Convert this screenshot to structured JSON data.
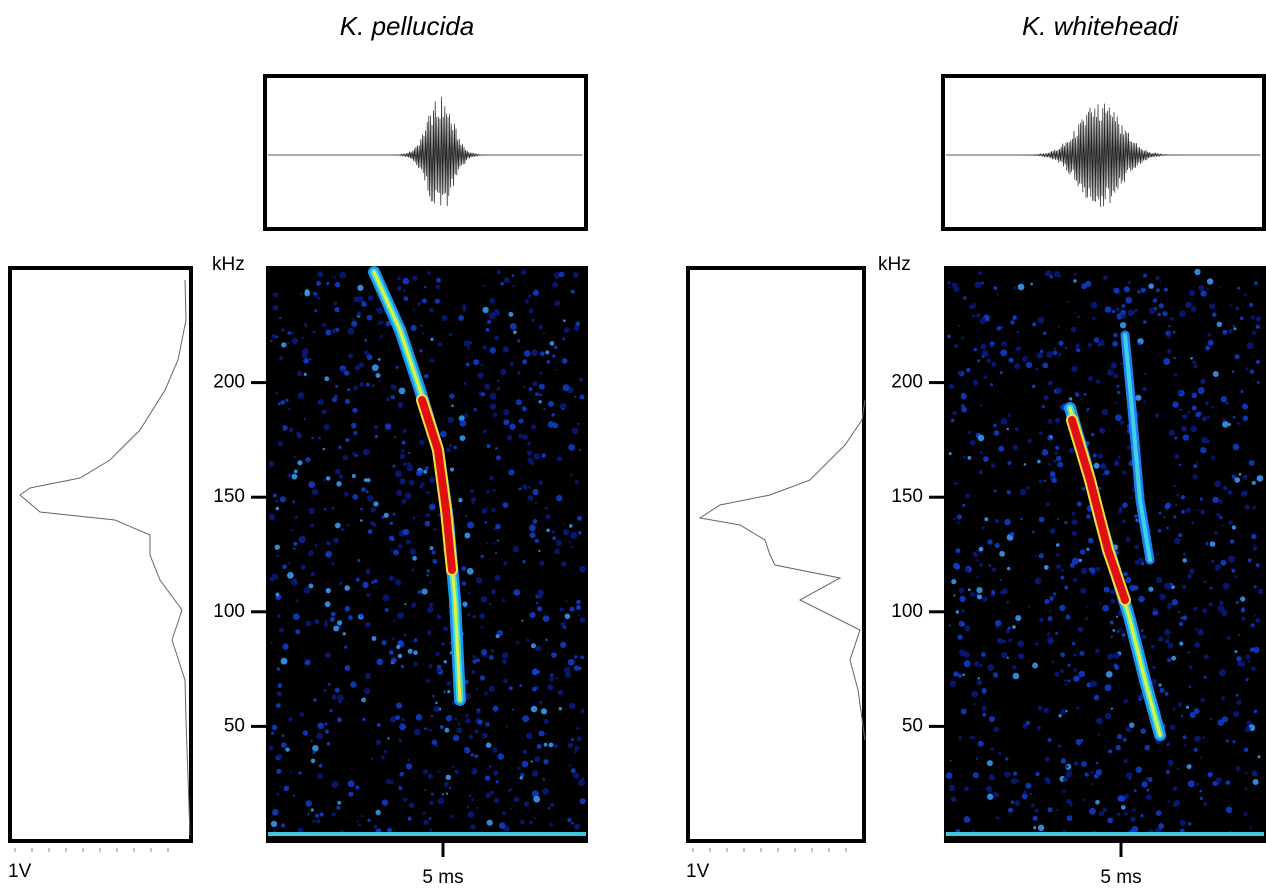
{
  "panels": [
    {
      "title": "K. pellucida",
      "y_label": "kHz",
      "ylim": [
        0,
        250
      ],
      "yticks": [
        50,
        100,
        150,
        200
      ],
      "x_label": "5 ms",
      "amplitude_label": "1V"
    },
    {
      "title": "K. whiteheadi",
      "y_label": "kHz",
      "ylim": [
        0,
        250
      ],
      "yticks": [
        50,
        100,
        150,
        200
      ],
      "x_label": "5 ms",
      "amplitude_label": "1V"
    }
  ]
}
